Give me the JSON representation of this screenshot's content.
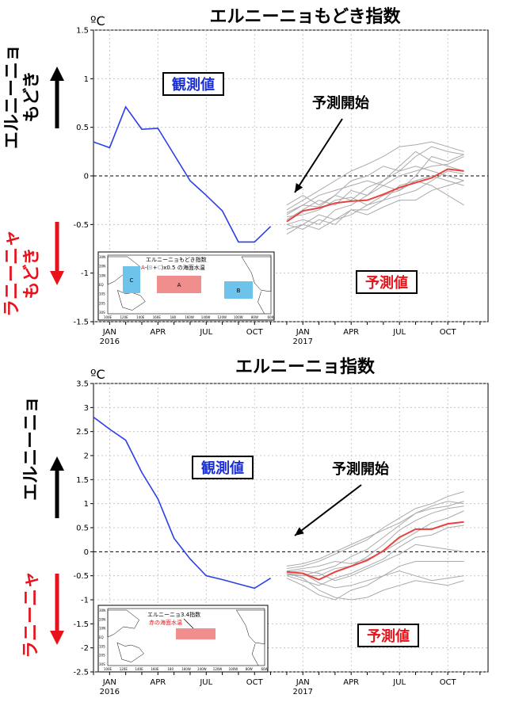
{
  "chart_data": [
    {
      "type": "line",
      "title": "エルニーニョもどき指数",
      "unit": "ºC",
      "ylim": [
        -1.5,
        1.5
      ],
      "yticks": [
        -1.5,
        -1,
        -0.5,
        0,
        0.5,
        1,
        1.5
      ],
      "yticklabels": [
        "-1.5",
        "-1",
        "-0.5",
        "0",
        "0.5",
        "1",
        "1.5"
      ],
      "xlim": [
        0,
        24.5
      ],
      "xticks": [
        {
          "m": 1,
          "label": "JAN",
          "year": "2016"
        },
        {
          "m": 4,
          "label": "APR",
          "year": ""
        },
        {
          "m": 7,
          "label": "JUL",
          "year": ""
        },
        {
          "m": 10,
          "label": "OCT",
          "year": ""
        },
        {
          "m": 13,
          "label": "JAN",
          "year": "2017"
        },
        {
          "m": 16,
          "label": "APR",
          "year": ""
        },
        {
          "m": 19,
          "label": "JUL",
          "year": ""
        },
        {
          "m": 22,
          "label": "OCT",
          "year": ""
        }
      ],
      "grid": true,
      "observed_label": "観測値",
      "forecast_label": "予測値",
      "forecast_start_label": "予測開始",
      "warm_label": "エルニーニョ\nもどき",
      "cold_label": "ラニーニャ\nもどき",
      "observed": {
        "x": [
          0,
          1,
          2,
          3,
          4,
          5,
          6,
          7,
          8,
          9,
          10,
          11
        ],
        "y": [
          0.35,
          0.29,
          0.71,
          0.48,
          0.49,
          0.22,
          -0.05,
          -0.2,
          -0.36,
          -0.68,
          -0.68,
          -0.52
        ]
      },
      "forecast_mean": {
        "x": [
          12,
          13,
          14,
          15,
          16,
          17,
          18,
          19,
          20,
          21,
          22,
          23
        ],
        "y": [
          -0.47,
          -0.36,
          -0.33,
          -0.28,
          -0.26,
          -0.25,
          -0.19,
          -0.12,
          -0.07,
          -0.02,
          0.07,
          0.05
        ]
      },
      "forecast_members": [
        [
          -0.35,
          -0.25,
          -0.15,
          -0.05,
          0.05,
          0.12,
          0.2,
          0.3,
          0.32,
          0.35,
          0.3,
          0.25
        ],
        [
          -0.4,
          -0.3,
          -0.32,
          -0.2,
          -0.25,
          -0.12,
          -0.05,
          0.1,
          0.25,
          0.15,
          0.1,
          0.05
        ],
        [
          -0.5,
          -0.45,
          -0.5,
          -0.35,
          -0.3,
          -0.2,
          -0.1,
          -0.15,
          0.0,
          0.2,
          0.15,
          0.22
        ],
        [
          -0.45,
          -0.35,
          -0.25,
          -0.3,
          -0.15,
          -0.2,
          -0.05,
          0.05,
          0.1,
          0.05,
          0.0,
          -0.05
        ],
        [
          -0.55,
          -0.5,
          -0.55,
          -0.45,
          -0.4,
          -0.3,
          -0.25,
          -0.1,
          -0.05,
          -0.1,
          -0.2,
          -0.3
        ],
        [
          -0.3,
          -0.2,
          -0.3,
          -0.2,
          -0.05,
          0.0,
          0.1,
          0.05,
          0.2,
          0.3,
          0.25,
          0.22
        ],
        [
          -0.5,
          -0.55,
          -0.45,
          -0.5,
          -0.35,
          -0.35,
          -0.25,
          -0.2,
          -0.15,
          -0.05,
          0.05,
          0.02
        ],
        [
          -0.42,
          -0.4,
          -0.35,
          -0.25,
          -0.22,
          -0.3,
          -0.2,
          -0.15,
          -0.05,
          0.0,
          -0.05,
          -0.1
        ],
        [
          -0.6,
          -0.5,
          -0.4,
          -0.45,
          -0.35,
          -0.4,
          -0.32,
          -0.25,
          -0.25,
          -0.15,
          -0.1,
          -0.05
        ],
        [
          -0.38,
          -0.3,
          -0.2,
          -0.15,
          -0.1,
          -0.05,
          -0.1,
          0.0,
          0.05,
          0.1,
          0.12,
          0.2
        ]
      ],
      "inset": {
        "title_line1": "エルニーニョもどき指数",
        "formula_parts": [
          "A",
          "-(",
          "B",
          "+",
          "C",
          ")x0.5",
          " の海面水温"
        ],
        "box_labels": [
          "A",
          "B",
          "C"
        ],
        "lat_ticks": [
          "30N",
          "20N",
          "10N",
          "EQ",
          "10S",
          "20S",
          "30S"
        ],
        "lon_ticks": [
          "100E",
          "120E",
          "140E",
          "160E",
          "180",
          "160W",
          "140W",
          "120W",
          "100W",
          "80W",
          "60W"
        ]
      }
    },
    {
      "type": "line",
      "title": "エルニーニョ指数",
      "unit": "ºC",
      "ylim": [
        -2.5,
        3.5
      ],
      "yticks": [
        -2.5,
        -2,
        -1.5,
        -1,
        -0.5,
        0,
        0.5,
        1,
        1.5,
        2,
        2.5,
        3,
        3.5
      ],
      "yticklabels": [
        "-2.5",
        "-2",
        "-1.5",
        "-1",
        "-0.5",
        "0",
        "0.5",
        "1",
        "1.5",
        "2",
        "2.5",
        "3",
        "3.5"
      ],
      "xlim": [
        0,
        24.5
      ],
      "xticks": [
        {
          "m": 1,
          "label": "JAN",
          "year": "2016"
        },
        {
          "m": 4,
          "label": "APR",
          "year": ""
        },
        {
          "m": 7,
          "label": "JUL",
          "year": ""
        },
        {
          "m": 10,
          "label": "OCT",
          "year": ""
        },
        {
          "m": 13,
          "label": "JAN",
          "year": "2017"
        },
        {
          "m": 16,
          "label": "APR",
          "year": ""
        },
        {
          "m": 19,
          "label": "JUL",
          "year": ""
        },
        {
          "m": 22,
          "label": "OCT",
          "year": ""
        }
      ],
      "grid": true,
      "observed_label": "観測値",
      "forecast_label": "予測値",
      "forecast_start_label": "予測開始",
      "warm_label": "エルニーニョ",
      "cold_label": "ラニーニャ",
      "observed": {
        "x": [
          0,
          1,
          2,
          3,
          4,
          5,
          6,
          7,
          8,
          9,
          10,
          11
        ],
        "y": [
          2.8,
          2.55,
          2.32,
          1.65,
          1.1,
          0.28,
          -0.15,
          -0.5,
          -0.58,
          -0.67,
          -0.76,
          -0.55
        ]
      },
      "forecast_mean": {
        "x": [
          12,
          13,
          14,
          15,
          16,
          17,
          18,
          19,
          20,
          21,
          22,
          23
        ],
        "y": [
          -0.42,
          -0.45,
          -0.58,
          -0.42,
          -0.3,
          -0.18,
          0.02,
          0.3,
          0.47,
          0.47,
          0.58,
          0.62
        ]
      },
      "forecast_members": [
        [
          -0.35,
          -0.3,
          -0.2,
          -0.05,
          0.1,
          0.25,
          0.5,
          0.7,
          0.9,
          1.0,
          1.15,
          1.25
        ],
        [
          -0.45,
          -0.5,
          -0.4,
          -0.3,
          -0.1,
          0.05,
          0.3,
          0.55,
          0.8,
          0.95,
          1.05,
          1.0
        ],
        [
          -0.5,
          -0.6,
          -0.7,
          -0.55,
          -0.45,
          -0.3,
          -0.15,
          0.1,
          0.3,
          0.35,
          0.5,
          0.55
        ],
        [
          -0.4,
          -0.35,
          -0.3,
          -0.2,
          -0.25,
          -0.15,
          0.0,
          0.2,
          0.4,
          0.6,
          0.7,
          0.85
        ],
        [
          -0.55,
          -0.7,
          -0.9,
          -1.0,
          -0.8,
          -0.7,
          -0.5,
          -0.3,
          -0.2,
          -0.2,
          -0.2,
          -0.2
        ],
        [
          -0.4,
          -0.45,
          -0.65,
          -0.75,
          -0.7,
          -0.6,
          -0.5,
          -0.4,
          -0.5,
          -0.6,
          -0.55,
          -0.5
        ],
        [
          -0.45,
          -0.55,
          -0.8,
          -0.95,
          -1.0,
          -0.95,
          -0.8,
          -0.7,
          -0.6,
          -0.65,
          -0.7,
          -0.6
        ],
        [
          -0.3,
          -0.25,
          -0.15,
          0.0,
          0.15,
          0.3,
          0.45,
          0.6,
          0.8,
          0.9,
          0.95,
          1.05
        ],
        [
          -0.48,
          -0.5,
          -0.5,
          -0.35,
          -0.3,
          -0.1,
          0.15,
          0.45,
          0.65,
          0.8,
          0.9,
          0.95
        ],
        [
          -0.42,
          -0.4,
          -0.45,
          -0.6,
          -0.5,
          -0.35,
          -0.2,
          -0.05,
          0.15,
          0.1,
          0.05,
          0.0
        ]
      ],
      "inset": {
        "title_line1": "エルニーニョ3.4指数",
        "formula_parts": [
          "赤の海面水温"
        ],
        "box_labels": [],
        "lat_ticks": [
          "30N",
          "20N",
          "10N",
          "EQ",
          "10S",
          "20S",
          "30S"
        ],
        "lon_ticks": [
          "100E",
          "120E",
          "140E",
          "160E",
          "180",
          "160W",
          "140W",
          "120W",
          "100W",
          "80W",
          "60W"
        ]
      }
    }
  ],
  "colors": {
    "observed": "#2a3fe8",
    "forecast_mean": "#e8413f",
    "member": "#aaaaaa",
    "warm_arrow": "#000000",
    "cold_arrow": "#e8121a",
    "label_blue": "#1a2fd8",
    "label_red": "#e8121a",
    "inset_box_red": "#f08d8d",
    "inset_box_blue": "#6ec3ea"
  }
}
